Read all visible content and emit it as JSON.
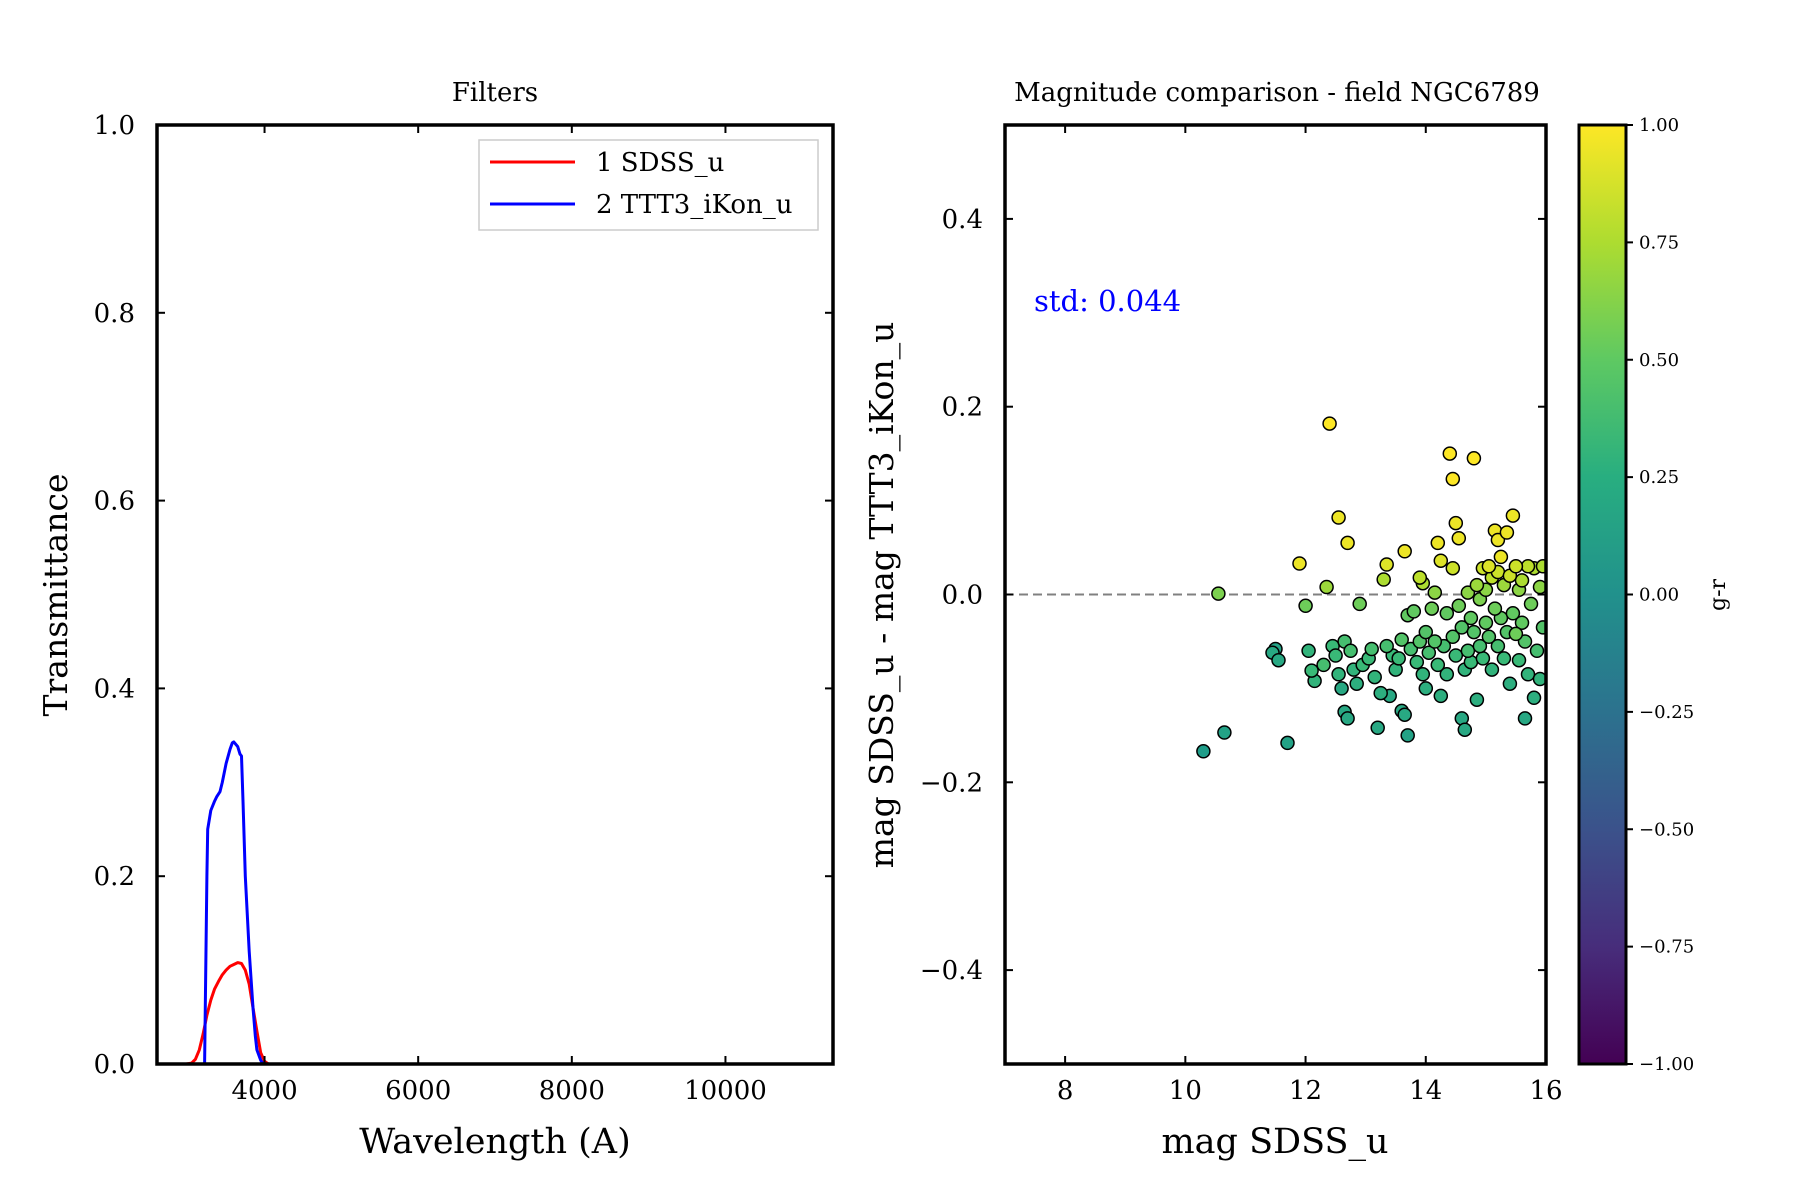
{
  "chart_data": [
    {
      "type": "line",
      "title": "Filters",
      "xlabel": "Wavelength (A)",
      "ylabel": "Transmittance",
      "xlim": [
        2600,
        11400
      ],
      "ylim": [
        0,
        1
      ],
      "xticks": [
        4000,
        6000,
        8000,
        10000
      ],
      "xtick_labels": [
        "4000",
        "6000",
        "8000",
        "10000"
      ],
      "yticks": [
        0,
        0.2,
        0.4,
        0.6,
        0.8,
        1.0
      ],
      "ytick_labels": [
        "0.0",
        "0.2",
        "0.4",
        "0.6",
        "0.8",
        "1.0"
      ],
      "legend": {
        "placement": "top-right",
        "entries": [
          "1 SDSS_u",
          "2 TTT3_iKon_u"
        ]
      },
      "grid": false,
      "series": [
        {
          "name": "1 SDSS_u",
          "color": "#ff0000",
          "x": [
            2980,
            3050,
            3100,
            3150,
            3200,
            3250,
            3300,
            3350,
            3400,
            3450,
            3500,
            3550,
            3600,
            3650,
            3700,
            3750,
            3800,
            3850,
            3900,
            3950,
            4000,
            4050
          ],
          "y": [
            0.0,
            0.001,
            0.005,
            0.015,
            0.032,
            0.052,
            0.068,
            0.08,
            0.088,
            0.095,
            0.1,
            0.104,
            0.106,
            0.108,
            0.107,
            0.1,
            0.085,
            0.06,
            0.035,
            0.012,
            0.003,
            0.0
          ]
        },
        {
          "name": "2 TTT3_iKon_u",
          "color": "#0000ff",
          "x": [
            3220,
            3250,
            3260,
            3300,
            3350,
            3380,
            3420,
            3450,
            3500,
            3550,
            3580,
            3600,
            3650,
            3680,
            3700,
            3720,
            3750,
            3800,
            3850,
            3880,
            3900,
            3950,
            3980
          ],
          "y": [
            0.0,
            0.2,
            0.25,
            0.27,
            0.28,
            0.285,
            0.29,
            0.3,
            0.32,
            0.335,
            0.342,
            0.343,
            0.338,
            0.33,
            0.328,
            0.28,
            0.2,
            0.12,
            0.06,
            0.03,
            0.015,
            0.004,
            0.0
          ]
        }
      ]
    },
    {
      "type": "scatter",
      "title": "Magnitude comparison - field NGC6789",
      "xlabel": "mag SDSS_u",
      "ylabel": "mag SDSS_u - mag TTT3_iKon_u",
      "xlim": [
        7,
        16
      ],
      "ylim": [
        -0.5,
        0.5
      ],
      "xticks": [
        8,
        10,
        12,
        14,
        16
      ],
      "xtick_labels": [
        "8",
        "10",
        "12",
        "14",
        "16"
      ],
      "yticks": [
        -0.4,
        -0.2,
        0.0,
        0.2,
        0.4
      ],
      "ytick_labels": [
        "−0.4",
        "−0.2",
        "0.0",
        "0.2",
        "0.4"
      ],
      "reference_line": {
        "y": 0,
        "style": "dashed",
        "color": "#808080"
      },
      "annotation": {
        "text": "std: 0.044",
        "color": "#0000ff"
      },
      "colorbar": {
        "label": "g-r",
        "colormap": "viridis",
        "range": [
          -1,
          1
        ],
        "ticks": [
          -1,
          -0.75,
          -0.5,
          -0.25,
          0,
          0.25,
          0.5,
          0.75,
          1
        ],
        "tick_labels": [
          "−1.00",
          "−0.75",
          "−0.50",
          "−0.25",
          "0.00",
          "0.25",
          "0.50",
          "0.75",
          "1.00"
        ]
      },
      "grid": false,
      "points": [
        {
          "x": 10.3,
          "y": -0.167,
          "c": 0.1
        },
        {
          "x": 10.55,
          "y": 0.001,
          "c": 0.6
        },
        {
          "x": 10.65,
          "y": -0.147,
          "c": 0.15
        },
        {
          "x": 11.45,
          "y": -0.062,
          "c": 0.2
        },
        {
          "x": 11.5,
          "y": -0.058,
          "c": 0.15
        },
        {
          "x": 11.55,
          "y": -0.07,
          "c": 0.2
        },
        {
          "x": 11.7,
          "y": -0.158,
          "c": 0.15
        },
        {
          "x": 11.9,
          "y": 0.033,
          "c": 0.95
        },
        {
          "x": 12.0,
          "y": -0.012,
          "c": 0.55
        },
        {
          "x": 12.05,
          "y": -0.06,
          "c": 0.3
        },
        {
          "x": 12.1,
          "y": -0.081,
          "c": 0.35
        },
        {
          "x": 12.15,
          "y": -0.092,
          "c": 0.3
        },
        {
          "x": 12.3,
          "y": -0.075,
          "c": 0.4
        },
        {
          "x": 12.35,
          "y": 0.008,
          "c": 0.7
        },
        {
          "x": 12.4,
          "y": 0.182,
          "c": 1.0
        },
        {
          "x": 12.45,
          "y": -0.055,
          "c": 0.35
        },
        {
          "x": 12.5,
          "y": -0.065,
          "c": 0.35
        },
        {
          "x": 12.55,
          "y": 0.082,
          "c": 0.95
        },
        {
          "x": 12.55,
          "y": -0.085,
          "c": 0.3
        },
        {
          "x": 12.6,
          "y": -0.1,
          "c": 0.2
        },
        {
          "x": 12.65,
          "y": -0.05,
          "c": 0.4
        },
        {
          "x": 12.65,
          "y": -0.125,
          "c": 0.2
        },
        {
          "x": 12.7,
          "y": -0.132,
          "c": 0.2
        },
        {
          "x": 12.7,
          "y": 0.055,
          "c": 0.95
        },
        {
          "x": 12.75,
          "y": -0.06,
          "c": 0.4
        },
        {
          "x": 12.8,
          "y": -0.08,
          "c": 0.3
        },
        {
          "x": 12.85,
          "y": -0.095,
          "c": 0.25
        },
        {
          "x": 12.9,
          "y": -0.01,
          "c": 0.55
        },
        {
          "x": 12.95,
          "y": -0.075,
          "c": 0.35
        },
        {
          "x": 13.05,
          "y": -0.068,
          "c": 0.35
        },
        {
          "x": 13.1,
          "y": -0.058,
          "c": 0.4
        },
        {
          "x": 13.15,
          "y": -0.088,
          "c": 0.3
        },
        {
          "x": 13.2,
          "y": -0.142,
          "c": 0.2
        },
        {
          "x": 13.25,
          "y": -0.105,
          "c": 0.25
        },
        {
          "x": 13.3,
          "y": 0.016,
          "c": 0.75
        },
        {
          "x": 13.35,
          "y": 0.032,
          "c": 0.9
        },
        {
          "x": 13.35,
          "y": -0.055,
          "c": 0.4
        },
        {
          "x": 13.4,
          "y": -0.108,
          "c": 0.2
        },
        {
          "x": 13.45,
          "y": -0.065,
          "c": 0.35
        },
        {
          "x": 13.5,
          "y": -0.08,
          "c": 0.3
        },
        {
          "x": 13.55,
          "y": -0.068,
          "c": 0.35
        },
        {
          "x": 13.6,
          "y": -0.048,
          "c": 0.45
        },
        {
          "x": 13.6,
          "y": -0.124,
          "c": 0.2
        },
        {
          "x": 13.65,
          "y": 0.046,
          "c": 0.95
        },
        {
          "x": 13.65,
          "y": -0.128,
          "c": 0.2
        },
        {
          "x": 13.7,
          "y": -0.15,
          "c": 0.15
        },
        {
          "x": 13.7,
          "y": -0.022,
          "c": 0.5
        },
        {
          "x": 13.75,
          "y": -0.058,
          "c": 0.4
        },
        {
          "x": 13.8,
          "y": -0.018,
          "c": 0.5
        },
        {
          "x": 13.85,
          "y": -0.072,
          "c": 0.35
        },
        {
          "x": 13.9,
          "y": -0.05,
          "c": 0.45
        },
        {
          "x": 13.9,
          "y": 0.018,
          "c": 0.8
        },
        {
          "x": 13.95,
          "y": -0.085,
          "c": 0.3
        },
        {
          "x": 13.95,
          "y": 0.012,
          "c": 0.75
        },
        {
          "x": 14.0,
          "y": -0.04,
          "c": 0.45
        },
        {
          "x": 14.0,
          "y": -0.1,
          "c": 0.25
        },
        {
          "x": 14.05,
          "y": -0.062,
          "c": 0.4
        },
        {
          "x": 14.1,
          "y": -0.015,
          "c": 0.55
        },
        {
          "x": 14.15,
          "y": -0.05,
          "c": 0.45
        },
        {
          "x": 14.15,
          "y": 0.002,
          "c": 0.65
        },
        {
          "x": 14.2,
          "y": 0.055,
          "c": 0.95
        },
        {
          "x": 14.2,
          "y": -0.075,
          "c": 0.35
        },
        {
          "x": 14.25,
          "y": -0.108,
          "c": 0.25
        },
        {
          "x": 14.25,
          "y": 0.036,
          "c": 0.9
        },
        {
          "x": 14.3,
          "y": -0.055,
          "c": 0.4
        },
        {
          "x": 14.35,
          "y": -0.02,
          "c": 0.5
        },
        {
          "x": 14.35,
          "y": -0.085,
          "c": 0.3
        },
        {
          "x": 14.4,
          "y": 0.15,
          "c": 1.0
        },
        {
          "x": 14.45,
          "y": 0.123,
          "c": 1.0
        },
        {
          "x": 14.45,
          "y": 0.028,
          "c": 0.85
        },
        {
          "x": 14.45,
          "y": -0.045,
          "c": 0.45
        },
        {
          "x": 14.5,
          "y": 0.076,
          "c": 0.95
        },
        {
          "x": 14.5,
          "y": -0.065,
          "c": 0.35
        },
        {
          "x": 14.55,
          "y": 0.06,
          "c": 0.95
        },
        {
          "x": 14.55,
          "y": -0.012,
          "c": 0.55
        },
        {
          "x": 14.6,
          "y": -0.132,
          "c": 0.2
        },
        {
          "x": 14.6,
          "y": -0.035,
          "c": 0.45
        },
        {
          "x": 14.65,
          "y": -0.144,
          "c": 0.2
        },
        {
          "x": 14.65,
          "y": -0.08,
          "c": 0.3
        },
        {
          "x": 14.7,
          "y": 0.002,
          "c": 0.65
        },
        {
          "x": 14.7,
          "y": -0.06,
          "c": 0.4
        },
        {
          "x": 14.75,
          "y": -0.025,
          "c": 0.5
        },
        {
          "x": 14.75,
          "y": -0.072,
          "c": 0.35
        },
        {
          "x": 14.8,
          "y": 0.145,
          "c": 1.0
        },
        {
          "x": 14.8,
          "y": -0.04,
          "c": 0.45
        },
        {
          "x": 14.85,
          "y": -0.112,
          "c": 0.25
        },
        {
          "x": 14.85,
          "y": 0.01,
          "c": 0.7
        },
        {
          "x": 14.9,
          "y": -0.055,
          "c": 0.4
        },
        {
          "x": 14.9,
          "y": -0.005,
          "c": 0.6
        },
        {
          "x": 14.95,
          "y": 0.028,
          "c": 0.85
        },
        {
          "x": 14.95,
          "y": -0.068,
          "c": 0.35
        },
        {
          "x": 15.0,
          "y": -0.03,
          "c": 0.5
        },
        {
          "x": 15.0,
          "y": 0.005,
          "c": 0.65
        },
        {
          "x": 15.05,
          "y": 0.03,
          "c": 0.9
        },
        {
          "x": 15.05,
          "y": -0.045,
          "c": 0.45
        },
        {
          "x": 15.1,
          "y": -0.08,
          "c": 0.3
        },
        {
          "x": 15.1,
          "y": 0.018,
          "c": 0.8
        },
        {
          "x": 15.15,
          "y": -0.015,
          "c": 0.55
        },
        {
          "x": 15.15,
          "y": 0.068,
          "c": 0.95
        },
        {
          "x": 15.2,
          "y": 0.058,
          "c": 0.95
        },
        {
          "x": 15.2,
          "y": 0.024,
          "c": 0.85
        },
        {
          "x": 15.2,
          "y": -0.055,
          "c": 0.4
        },
        {
          "x": 15.25,
          "y": -0.025,
          "c": 0.5
        },
        {
          "x": 15.25,
          "y": 0.04,
          "c": 0.95
        },
        {
          "x": 15.3,
          "y": -0.068,
          "c": 0.35
        },
        {
          "x": 15.3,
          "y": 0.01,
          "c": 0.7
        },
        {
          "x": 15.35,
          "y": -0.04,
          "c": 0.45
        },
        {
          "x": 15.35,
          "y": 0.066,
          "c": 0.95
        },
        {
          "x": 15.4,
          "y": 0.02,
          "c": 0.85
        },
        {
          "x": 15.4,
          "y": -0.095,
          "c": 0.25
        },
        {
          "x": 15.45,
          "y": 0.084,
          "c": 0.95
        },
        {
          "x": 15.45,
          "y": -0.02,
          "c": 0.5
        },
        {
          "x": 15.5,
          "y": -0.042,
          "c": 0.55
        },
        {
          "x": 15.5,
          "y": 0.03,
          "c": 0.85
        },
        {
          "x": 15.55,
          "y": 0.005,
          "c": 0.65
        },
        {
          "x": 15.55,
          "y": -0.07,
          "c": 0.35
        },
        {
          "x": 15.6,
          "y": -0.03,
          "c": 0.5
        },
        {
          "x": 15.6,
          "y": 0.015,
          "c": 0.75
        },
        {
          "x": 15.65,
          "y": -0.132,
          "c": 0.2
        },
        {
          "x": 15.65,
          "y": -0.05,
          "c": 0.45
        },
        {
          "x": 15.7,
          "y": 0.03,
          "c": 0.8
        },
        {
          "x": 15.7,
          "y": -0.085,
          "c": 0.3
        },
        {
          "x": 15.75,
          "y": -0.01,
          "c": 0.55
        },
        {
          "x": 15.8,
          "y": -0.11,
          "c": 0.25
        },
        {
          "x": 15.8,
          "y": 0.028,
          "c": 0.75
        },
        {
          "x": 15.85,
          "y": -0.06,
          "c": 0.4
        },
        {
          "x": 15.9,
          "y": 0.008,
          "c": 0.65
        },
        {
          "x": 15.9,
          "y": -0.09,
          "c": 0.3
        },
        {
          "x": 15.95,
          "y": 0.03,
          "c": 0.75
        },
        {
          "x": 15.95,
          "y": -0.035,
          "c": 0.45
        }
      ]
    }
  ]
}
